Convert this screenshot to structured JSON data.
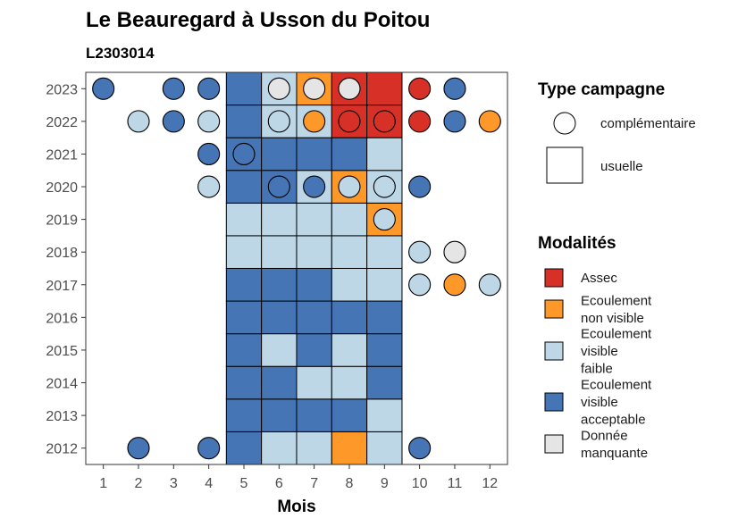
{
  "chart_data": {
    "type": "heatmap",
    "title": "Le Beauregard à Usson du Poitou",
    "subtitle": "L2303014",
    "xlabel": "Mois",
    "ylabel": "",
    "x_ticks": [
      "1",
      "2",
      "3",
      "4",
      "5",
      "6",
      "7",
      "8",
      "9",
      "10",
      "11",
      "12"
    ],
    "y_ticks": [
      "2012",
      "2013",
      "2014",
      "2015",
      "2016",
      "2017",
      "2018",
      "2019",
      "2020",
      "2021",
      "2022",
      "2023"
    ],
    "grid": false,
    "legend_placement": "right",
    "colors": {
      "Assec": "#d73027",
      "Ecoulement non visible": "#fe9929",
      "Ecoulement visible faible": "#bdd7e7",
      "Ecoulement visible acceptable": "#4575b4",
      "Donnée manquante": "#e5e5e5"
    },
    "legend_type": {
      "title": "Type campagne",
      "items": [
        {
          "label": "complémentaire",
          "shape": "circle"
        },
        {
          "label": "usuelle",
          "shape": "square"
        }
      ]
    },
    "legend_modalites": {
      "title": "Modalités",
      "items": [
        {
          "key": "Assec",
          "lines": [
            "Assec"
          ]
        },
        {
          "key": "Ecoulement non visible",
          "lines": [
            "Ecoulement",
            "non visible"
          ]
        },
        {
          "key": "Ecoulement visible faible",
          "lines": [
            "Ecoulement",
            "visible",
            "faible"
          ]
        },
        {
          "key": "Ecoulement visible acceptable",
          "lines": [
            "Ecoulement",
            "visible",
            "acceptable"
          ]
        },
        {
          "key": "Donnée manquante",
          "lines": [
            "Donnée",
            "manquante"
          ]
        }
      ]
    },
    "usuelle": [
      {
        "year": "2012",
        "values": [
          "Ecoulement visible acceptable",
          "Ecoulement visible faible",
          "Ecoulement visible faible",
          "Ecoulement non visible",
          "Ecoulement visible faible"
        ]
      },
      {
        "year": "2013",
        "values": [
          "Ecoulement visible acceptable",
          "Ecoulement visible acceptable",
          "Ecoulement visible acceptable",
          "Ecoulement visible acceptable",
          "Ecoulement visible faible"
        ]
      },
      {
        "year": "2014",
        "values": [
          "Ecoulement visible acceptable",
          "Ecoulement visible acceptable",
          "Ecoulement visible faible",
          "Ecoulement visible faible",
          "Ecoulement visible acceptable"
        ]
      },
      {
        "year": "2015",
        "values": [
          "Ecoulement visible acceptable",
          "Ecoulement visible faible",
          "Ecoulement visible acceptable",
          "Ecoulement visible faible",
          "Ecoulement visible acceptable"
        ]
      },
      {
        "year": "2016",
        "values": [
          "Ecoulement visible acceptable",
          "Ecoulement visible acceptable",
          "Ecoulement visible acceptable",
          "Ecoulement visible acceptable",
          "Ecoulement visible acceptable"
        ]
      },
      {
        "year": "2017",
        "values": [
          "Ecoulement visible acceptable",
          "Ecoulement visible acceptable",
          "Ecoulement visible acceptable",
          "Ecoulement visible faible",
          "Ecoulement visible faible"
        ]
      },
      {
        "year": "2018",
        "values": [
          "Ecoulement visible faible",
          "Ecoulement visible faible",
          "Ecoulement visible faible",
          "Ecoulement visible faible",
          "Ecoulement visible faible"
        ]
      },
      {
        "year": "2019",
        "values": [
          "Ecoulement visible faible",
          "Ecoulement visible faible",
          "Ecoulement visible faible",
          "Ecoulement visible faible",
          "Ecoulement non visible"
        ]
      },
      {
        "year": "2020",
        "values": [
          "Ecoulement visible acceptable",
          "Ecoulement visible acceptable",
          "Ecoulement visible faible",
          "Ecoulement non visible",
          "Ecoulement visible faible"
        ]
      },
      {
        "year": "2021",
        "values": [
          "Ecoulement visible acceptable",
          "Ecoulement visible acceptable",
          "Ecoulement visible acceptable",
          "Ecoulement visible acceptable",
          "Ecoulement visible faible"
        ]
      },
      {
        "year": "2022",
        "values": [
          "Ecoulement visible acceptable",
          "Ecoulement visible faible",
          "Ecoulement visible faible",
          "Assec",
          "Assec"
        ]
      },
      {
        "year": "2023",
        "values": [
          "Ecoulement visible acceptable",
          "Ecoulement visible faible",
          "Ecoulement non visible",
          "Assec",
          "Assec"
        ]
      }
    ],
    "usuelle_months": [
      "5",
      "6",
      "7",
      "8",
      "9"
    ],
    "complementaire": [
      {
        "year": "2023",
        "month": "1",
        "value": "Ecoulement visible acceptable"
      },
      {
        "year": "2023",
        "month": "3",
        "value": "Ecoulement visible acceptable"
      },
      {
        "year": "2023",
        "month": "4",
        "value": "Ecoulement visible acceptable"
      },
      {
        "year": "2023",
        "month": "6",
        "value": "Donnée manquante"
      },
      {
        "year": "2023",
        "month": "7",
        "value": "Donnée manquante"
      },
      {
        "year": "2023",
        "month": "8",
        "value": "Donnée manquante"
      },
      {
        "year": "2023",
        "month": "10",
        "value": "Assec"
      },
      {
        "year": "2023",
        "month": "11",
        "value": "Ecoulement visible acceptable"
      },
      {
        "year": "2022",
        "month": "2",
        "value": "Ecoulement visible faible"
      },
      {
        "year": "2022",
        "month": "3",
        "value": "Ecoulement visible acceptable"
      },
      {
        "year": "2022",
        "month": "4",
        "value": "Ecoulement visible faible"
      },
      {
        "year": "2022",
        "month": "6",
        "value": "Ecoulement visible faible"
      },
      {
        "year": "2022",
        "month": "7",
        "value": "Ecoulement non visible"
      },
      {
        "year": "2022",
        "month": "8",
        "value": "Assec"
      },
      {
        "year": "2022",
        "month": "9",
        "value": "Assec"
      },
      {
        "year": "2022",
        "month": "10",
        "value": "Assec"
      },
      {
        "year": "2022",
        "month": "11",
        "value": "Ecoulement visible acceptable"
      },
      {
        "year": "2022",
        "month": "12",
        "value": "Ecoulement non visible"
      },
      {
        "year": "2021",
        "month": "4",
        "value": "Ecoulement visible acceptable"
      },
      {
        "year": "2021",
        "month": "5",
        "value": "Ecoulement visible acceptable"
      },
      {
        "year": "2020",
        "month": "4",
        "value": "Ecoulement visible faible"
      },
      {
        "year": "2020",
        "month": "6",
        "value": "Ecoulement visible acceptable"
      },
      {
        "year": "2020",
        "month": "7",
        "value": "Ecoulement visible acceptable"
      },
      {
        "year": "2020",
        "month": "8",
        "value": "Ecoulement visible faible"
      },
      {
        "year": "2020",
        "month": "9",
        "value": "Ecoulement visible faible"
      },
      {
        "year": "2020",
        "month": "10",
        "value": "Ecoulement visible acceptable"
      },
      {
        "year": "2019",
        "month": "9",
        "value": "Ecoulement visible faible"
      },
      {
        "year": "2018",
        "month": "10",
        "value": "Ecoulement visible faible"
      },
      {
        "year": "2018",
        "month": "11",
        "value": "Donnée manquante"
      },
      {
        "year": "2017",
        "month": "10",
        "value": "Ecoulement visible faible"
      },
      {
        "year": "2017",
        "month": "11",
        "value": "Ecoulement non visible"
      },
      {
        "year": "2017",
        "month": "12",
        "value": "Ecoulement visible faible"
      },
      {
        "year": "2012",
        "month": "2",
        "value": "Ecoulement visible acceptable"
      },
      {
        "year": "2012",
        "month": "4",
        "value": "Ecoulement visible acceptable"
      },
      {
        "year": "2012",
        "month": "10",
        "value": "Ecoulement visible acceptable"
      }
    ]
  }
}
